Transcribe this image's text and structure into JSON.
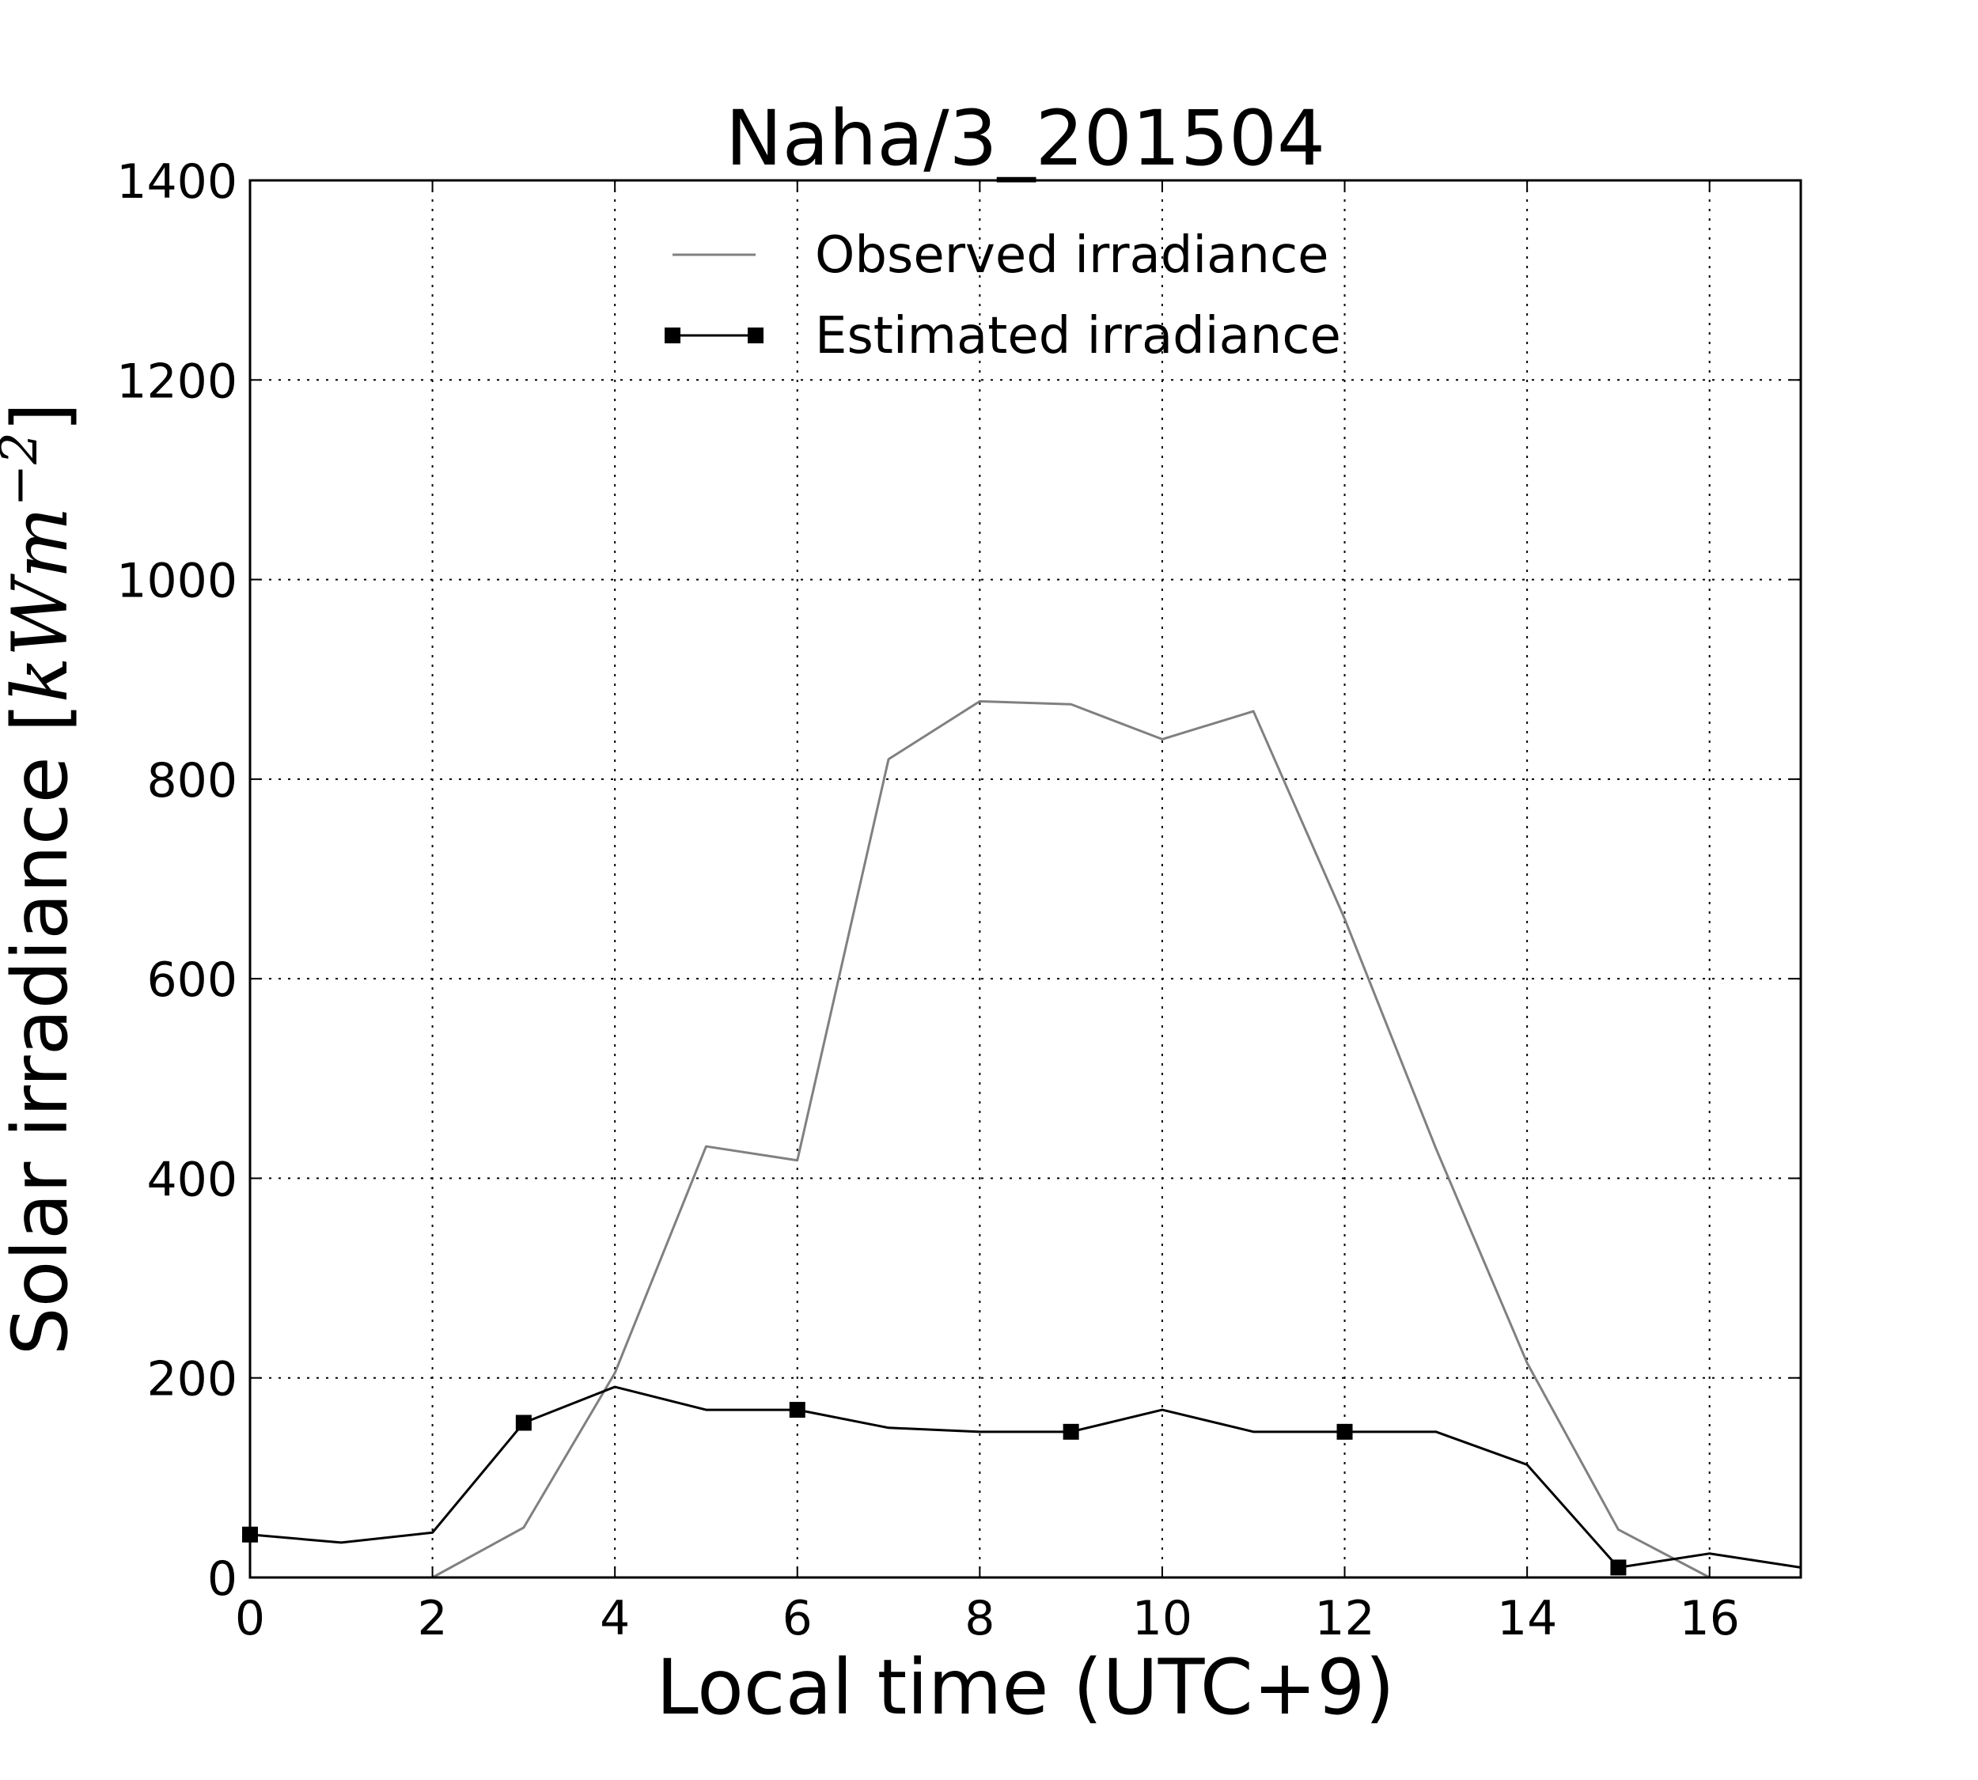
{
  "chart_data": {
    "type": "line",
    "title": "Naha/3_201504",
    "xlabel": "Local time (UTC+9)",
    "ylabel": "Solar irradiance [kWm⁻²]",
    "ylabel_parts": {
      "text": "Solar irradiance ",
      "unit_open": "[",
      "unit": "kWm",
      "unit_exp": "−2",
      "unit_close": "]"
    },
    "xlim": [
      0,
      17
    ],
    "ylim": [
      0,
      1400
    ],
    "xticks": [
      0,
      2,
      4,
      6,
      8,
      10,
      12,
      14,
      16
    ],
    "yticks": [
      0,
      200,
      400,
      600,
      800,
      1000,
      1200,
      1400
    ],
    "grid": true,
    "legend_position": "top-center",
    "series": [
      {
        "name": "Observed irradiance",
        "color": "#808080",
        "marker": "none",
        "points": [
          [
            2,
            0
          ],
          [
            3,
            50
          ],
          [
            4,
            205
          ],
          [
            5,
            432
          ],
          [
            6,
            418
          ],
          [
            7,
            820
          ],
          [
            8,
            878
          ],
          [
            9,
            875
          ],
          [
            10,
            840
          ],
          [
            11,
            868
          ],
          [
            12,
            660
          ],
          [
            13,
            430
          ],
          [
            14,
            215
          ],
          [
            15,
            48
          ],
          [
            16,
            0
          ]
        ]
      },
      {
        "name": "Estimated irradiance",
        "color": "#000000",
        "marker": "square",
        "marker_every": [
          0,
          3,
          6,
          9,
          12,
          15
        ],
        "points": [
          [
            0,
            43
          ],
          [
            1,
            35
          ],
          [
            2,
            45
          ],
          [
            3,
            155
          ],
          [
            4,
            191
          ],
          [
            5,
            168
          ],
          [
            6,
            168
          ],
          [
            7,
            150
          ],
          [
            8,
            146
          ],
          [
            9,
            146
          ],
          [
            10,
            168
          ],
          [
            11,
            146
          ],
          [
            12,
            146
          ],
          [
            13,
            146
          ],
          [
            14,
            113
          ],
          [
            15,
            10
          ],
          [
            16,
            24
          ],
          [
            17,
            10
          ]
        ]
      }
    ]
  }
}
